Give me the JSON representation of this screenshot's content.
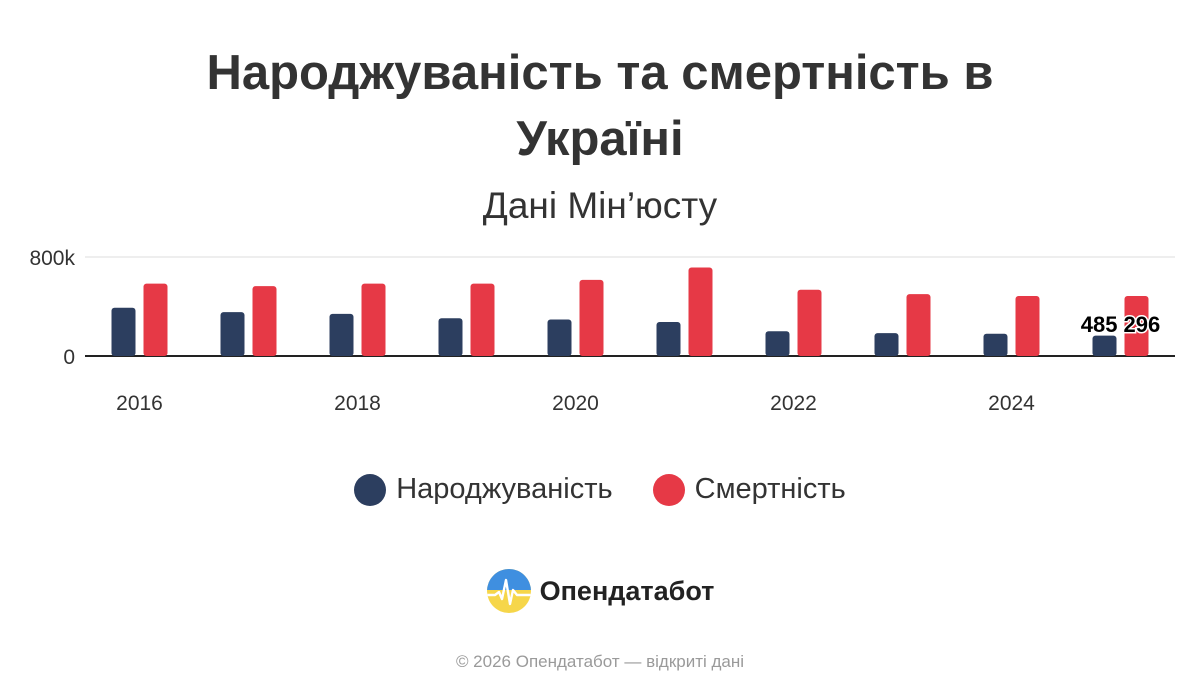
{
  "chart_data": {
    "type": "bar",
    "title_lines": [
      "Народжуваність та смертність в",
      "Україні"
    ],
    "subtitle": "Дані Мін’юсту",
    "x": [
      2016,
      2017,
      2018,
      2019,
      2020,
      2021,
      2022,
      2023,
      2024,
      2025
    ],
    "x_tick_labels": [
      "2016",
      "2018",
      "2020",
      "2022",
      "2024"
    ],
    "y_tick_labels": [
      "0",
      "800k"
    ],
    "ylim": [
      0,
      800000
    ],
    "grid": true,
    "legend_position": "bottom",
    "series": [
      {
        "name": "Народжуваність",
        "color": "#2c3e5f",
        "values": [
          390000,
          355000,
          340000,
          305000,
          295000,
          275000,
          200000,
          185000,
          180000,
          165000
        ]
      },
      {
        "name": "Смертність",
        "color": "#e63946",
        "values": [
          585000,
          565000,
          585000,
          585000,
          615000,
          715000,
          535000,
          500000,
          485000,
          485296
        ]
      }
    ],
    "data_label": {
      "series_index": 1,
      "point_index": 9,
      "text": "485 296"
    }
  },
  "brand": {
    "name": "Опендатабот"
  },
  "footer": {
    "text": "© 2026 Опендатабот — відкриті дані"
  }
}
